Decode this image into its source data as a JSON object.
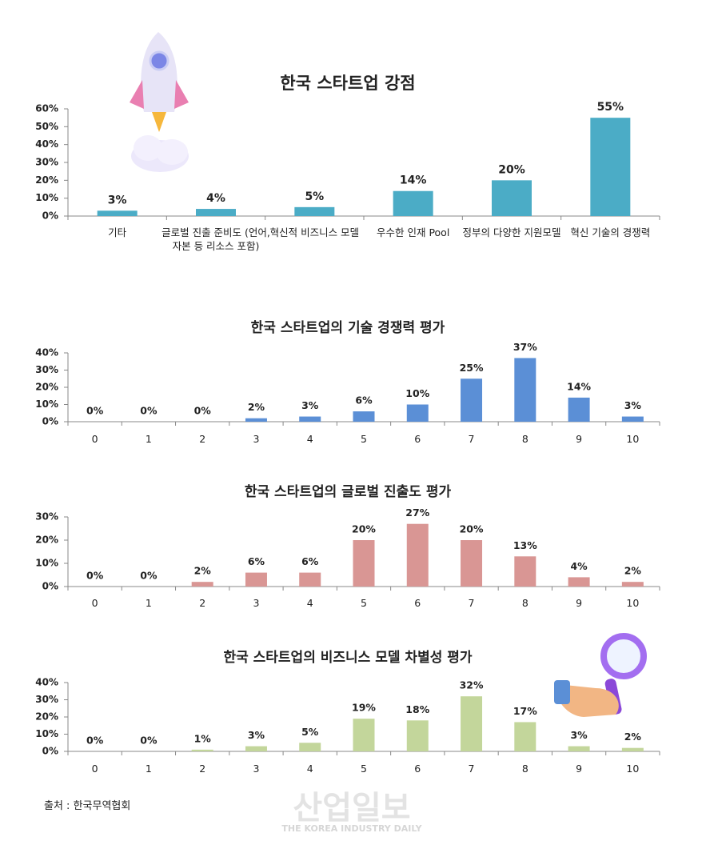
{
  "chart_data": [
    {
      "type": "bar",
      "title": "한국 스타트업 강점",
      "categories": [
        "기타",
        "글로벌 진출 준비도 (언어, 자본 등 리소스 포함)",
        "혁신적 비즈니스 모델",
        "우수한 인재 Pool",
        "정부의 다양한 지원모델",
        "혁신 기술의 경쟁력"
      ],
      "values": [
        3,
        4,
        5,
        14,
        20,
        55
      ],
      "value_labels": [
        "3%",
        "4%",
        "5%",
        "14%",
        "20%",
        "55%"
      ],
      "color": "#4bacc6",
      "ylim": [
        0,
        60
      ],
      "yticks": [
        {
          "value": 0,
          "label": "0%"
        },
        {
          "value": 10,
          "label": "10%"
        },
        {
          "value": 20,
          "label": "20%"
        },
        {
          "value": 30,
          "label": "30%"
        },
        {
          "value": 40,
          "label": "40%"
        },
        {
          "value": 50,
          "label": "50%"
        },
        {
          "value": 60,
          "label": "60%"
        }
      ],
      "grid": false
    },
    {
      "type": "bar",
      "title": "한국 스타트업의 기술 경쟁력 평가",
      "categories": [
        "0",
        "1",
        "2",
        "3",
        "4",
        "5",
        "6",
        "7",
        "8",
        "9",
        "10"
      ],
      "values": [
        0,
        0,
        0,
        2,
        3,
        6,
        10,
        25,
        37,
        14,
        3
      ],
      "value_labels": [
        "0%",
        "0%",
        "0%",
        "2%",
        "3%",
        "6%",
        "10%",
        "25%",
        "37%",
        "14%",
        "3%"
      ],
      "color": "#5b8fd6",
      "ylim": [
        0,
        40
      ],
      "yticks": [
        {
          "value": 0,
          "label": "0%"
        },
        {
          "value": 10,
          "label": "10%"
        },
        {
          "value": 20,
          "label": "20%"
        },
        {
          "value": 30,
          "label": "30%"
        },
        {
          "value": 40,
          "label": "40%"
        }
      ],
      "grid": false
    },
    {
      "type": "bar",
      "title": "한국 스타트업의 글로벌 진출도 평가",
      "categories": [
        "0",
        "1",
        "2",
        "3",
        "4",
        "5",
        "6",
        "7",
        "8",
        "9",
        "10"
      ],
      "values": [
        0,
        0,
        2,
        6,
        6,
        20,
        27,
        20,
        13,
        4,
        2
      ],
      "value_labels": [
        "0%",
        "0%",
        "2%",
        "6%",
        "6%",
        "20%",
        "27%",
        "20%",
        "13%",
        "4%",
        "2%"
      ],
      "color": "#d99694",
      "ylim": [
        0,
        30
      ],
      "yticks": [
        {
          "value": 0,
          "label": "0%"
        },
        {
          "value": 10,
          "label": "10%"
        },
        {
          "value": 20,
          "label": "20%"
        },
        {
          "value": 30,
          "label": "30%"
        }
      ],
      "grid": false
    },
    {
      "type": "bar",
      "title": "한국 스타트업의 비즈니스 모델 차별성 평가",
      "categories": [
        "0",
        "1",
        "2",
        "3",
        "4",
        "5",
        "6",
        "7",
        "8",
        "9",
        "10"
      ],
      "values": [
        0,
        0,
        1,
        3,
        5,
        19,
        18,
        32,
        17,
        3,
        2
      ],
      "value_labels": [
        "0%",
        "0%",
        "1%",
        "3%",
        "5%",
        "19%",
        "18%",
        "32%",
        "17%",
        "3%",
        "2%"
      ],
      "color": "#c3d69b",
      "ylim": [
        0,
        40
      ],
      "yticks": [
        {
          "value": 0,
          "label": "0%"
        },
        {
          "value": 10,
          "label": "10%"
        },
        {
          "value": 20,
          "label": "20%"
        },
        {
          "value": 30,
          "label": "30%"
        },
        {
          "value": 40,
          "label": "40%"
        }
      ],
      "grid": false
    }
  ],
  "source": "출처 : 한국무역협회",
  "watermark": "산업일보",
  "watermark_sub": "THE KOREA INDUSTRY DAILY"
}
